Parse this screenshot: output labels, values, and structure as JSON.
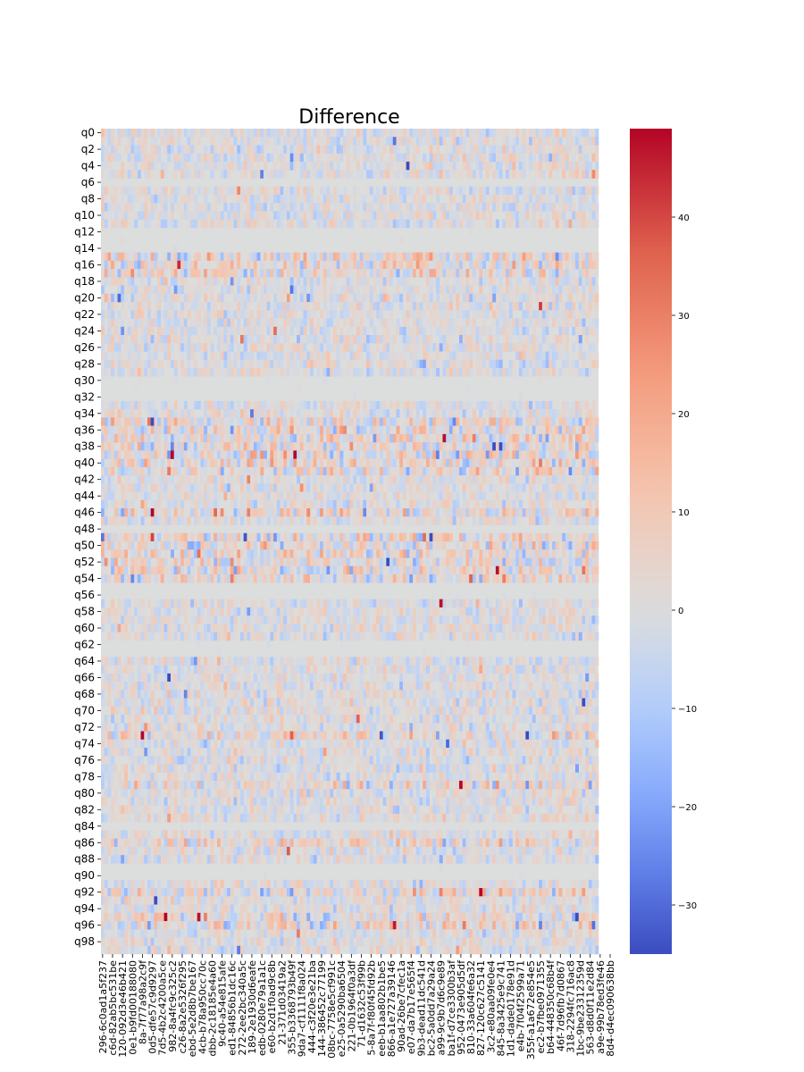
{
  "chart_data": {
    "type": "heatmap",
    "title": "Difference",
    "colormap": "coolwarm",
    "value_range": [
      -35,
      49
    ],
    "colorbar": {
      "ticks": [
        -30,
        -20,
        -10,
        0,
        10,
        20,
        30,
        40
      ],
      "tick_labels": [
        "−30",
        "−20",
        "−10",
        "0",
        "10",
        "20",
        "30",
        "40"
      ]
    },
    "n_rows": 100,
    "n_cols": 150,
    "y_tick_labels": [
      "q0",
      "q2",
      "q4",
      "q6",
      "q8",
      "q10",
      "q12",
      "q14",
      "q16",
      "q18",
      "q20",
      "q22",
      "q24",
      "q26",
      "q28",
      "q30",
      "q32",
      "q34",
      "q36",
      "q38",
      "q40",
      "q42",
      "q44",
      "q46",
      "q48",
      "q50",
      "q52",
      "q54",
      "q56",
      "q58",
      "q60",
      "q62",
      "q64",
      "q66",
      "q68",
      "q70",
      "q72",
      "q74",
      "q76",
      "q78",
      "q80",
      "q82",
      "q84",
      "q86",
      "q88",
      "q90",
      "q92",
      "q94",
      "q96",
      "q98"
    ],
    "x_tick_labels": [
      "296-6c0ad1a5f237",
      "c6d-82ab5bc531be",
      "120-092d3e46b421",
      "0e1-b9fd00188080",
      "8a-7f77a98a2c9f",
      "0d5-dfe57c9d9297",
      "7d5-4b2c4200a5ce",
      "982-8a4fc9c325c2",
      "c26-8a2e5326f295",
      "ebd-5e2d8b7be167",
      "4cb-b78a950cc70c",
      "dbb-2c18185e4a60",
      "9c40-a54e815afe",
      "ed1-84856b1dc16c",
      "272-2ee2bc340a5c",
      "189-2e1930d6eafe",
      "edb-0280e79a1a1c",
      "e60-b2d1f0ad9c8b",
      "21-371d03419a2",
      "355-b3368793b49f",
      "9da7-cf1111f8a024",
      "444-c3f20e3e21ba",
      "144-386452c77199",
      "08bc-7758e5cf991c",
      "e25-0a5290ba6504",
      "221-0b1964f0a3df",
      "71-d1632c53f99b",
      "5-8a7f-f80f45fd92b",
      "eeb-b1aa802b1be5",
      "866-a1e727a39146",
      "90ad-26be7cfec1a",
      "e07-da7b17e565f4",
      "9b3-dead11dc541d",
      "bc2-5a0dd7a29a24",
      "a99-9c9b7d6c9e89",
      "ba1f-d7ce3300b3af",
      "952-0473e905d5df",
      "810-33a604fe6a32",
      "827-120c627c5141",
      "3c2-e80aa09fe0e4",
      "845-8a3425e9c741",
      "1d1-dade0178e91d",
      "e4b-7f04f2599a71",
      "355f-a1a672e854e5",
      "ec2-b7fbe0971355",
      "b64-448350c68b4f",
      "46f-7d96fb7d0867",
      "318-2294fc716ac8",
      "1bc-9be23312359d",
      "563-d8d0f11e2d84",
      "a9e-99b78ed3fe46",
      "8d4-d4ec090638bb"
    ]
  }
}
